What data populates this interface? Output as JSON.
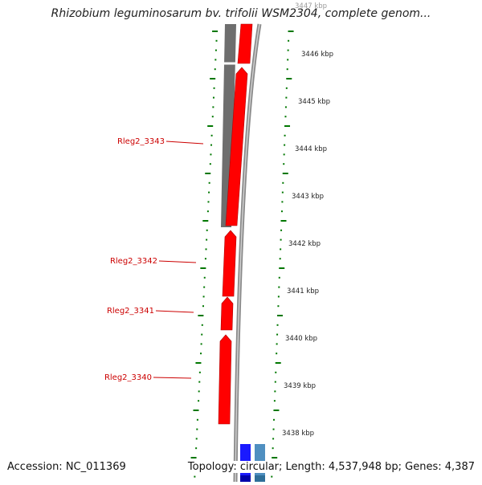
{
  "title": "Rhizobium leguminosarum bv. trifolii WSM2304, complete genom...",
  "footer": {
    "accession": "Accession: NC_011369",
    "stats": "Topology: circular; Length: 4,537,948 bp; Genes: 4,387"
  },
  "ruler": {
    "unit": "kbp",
    "labels": [
      "3447 kbp",
      "3446 kbp",
      "3445 kbp",
      "3444 kbp",
      "3443 kbp",
      "3442 kbp",
      "3441 kbp",
      "3440 kbp",
      "3439 kbp",
      "3438 kbp"
    ]
  },
  "genes": [
    {
      "name": "Rleg2_3343",
      "strand": "+",
      "color": "#ff0000"
    },
    {
      "name": "Rleg2_3342",
      "strand": "+",
      "color": "#ff0000"
    },
    {
      "name": "Rleg2_3341",
      "strand": "+",
      "color": "#ff0000"
    },
    {
      "name": "Rleg2_3340",
      "strand": "+",
      "color": "#ff0000"
    }
  ],
  "colors": {
    "gene": "#ff0000",
    "gene_edge": "#b00000",
    "label": "#cc0000",
    "homolog_track": "#6e6e6e",
    "backbone": "#8a8a8a",
    "ticks": "#007700",
    "blue_feature": "#1a1aff",
    "lightblue_feature": "#4f8fc0"
  }
}
